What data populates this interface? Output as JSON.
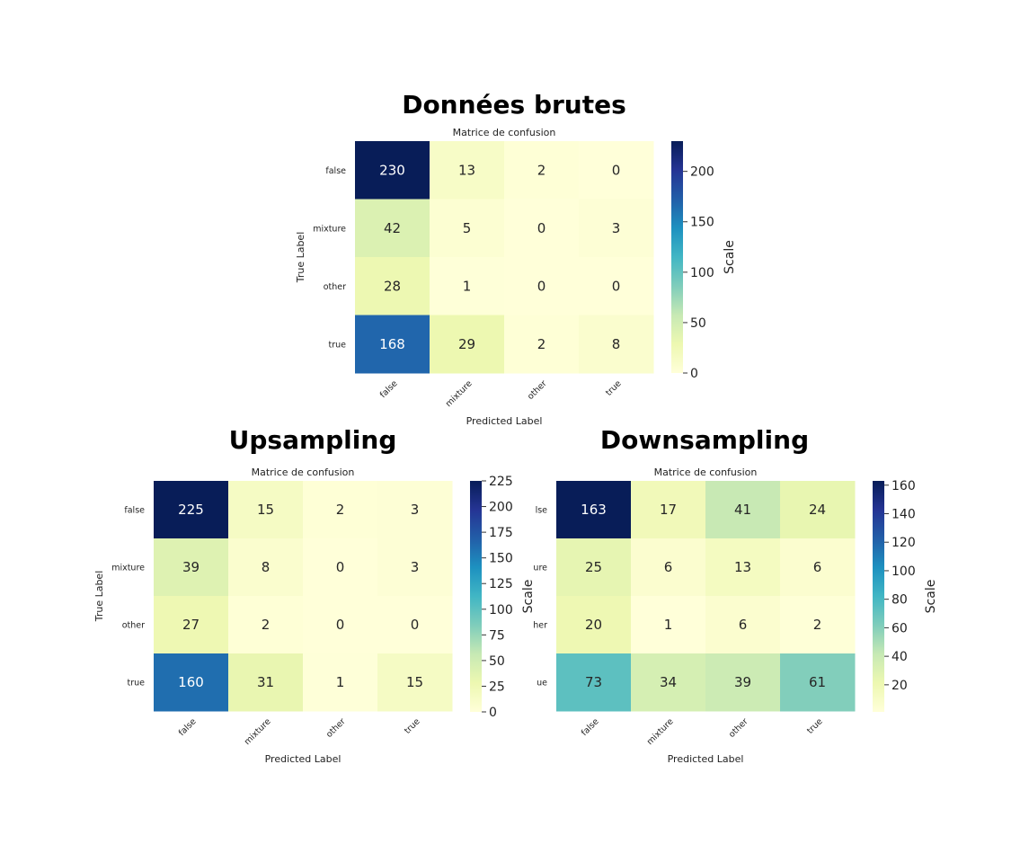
{
  "sections": {
    "raw": "Données brutes",
    "up": "Upsampling",
    "down": "Downsampling"
  },
  "chart_data": [
    {
      "type": "heatmap",
      "id": "raw",
      "title": "Matrice de confusion",
      "xlabel": "Predicted Label",
      "ylabel": "True Label",
      "row_labels": [
        "false",
        "mixture",
        "other",
        "true"
      ],
      "col_labels": [
        "false",
        "mixture",
        "other",
        "true"
      ],
      "matrix": [
        [
          230,
          13,
          2,
          0
        ],
        [
          42,
          5,
          0,
          3
        ],
        [
          28,
          1,
          0,
          0
        ],
        [
          168,
          29,
          2,
          8
        ]
      ],
      "colorbar": {
        "label": "Scale",
        "min": 0,
        "max": 230,
        "ticks": [
          0,
          50,
          100,
          150,
          200
        ]
      },
      "colormap": "YlGnBu"
    },
    {
      "type": "heatmap",
      "id": "up",
      "title": "Matrice de confusion",
      "xlabel": "Predicted Label",
      "ylabel": "True Label",
      "row_labels": [
        "false",
        "mixture",
        "other",
        "true"
      ],
      "col_labels": [
        "false",
        "mixture",
        "other",
        "true"
      ],
      "matrix": [
        [
          225,
          15,
          2,
          3
        ],
        [
          39,
          8,
          0,
          3
        ],
        [
          27,
          2,
          0,
          0
        ],
        [
          160,
          31,
          1,
          15
        ]
      ],
      "colorbar": {
        "label": "Scale",
        "min": 0,
        "max": 225,
        "ticks": [
          0,
          25,
          50,
          75,
          100,
          125,
          150,
          175,
          200,
          225
        ]
      },
      "colormap": "YlGnBu"
    },
    {
      "type": "heatmap",
      "id": "down",
      "title": "Matrice de confusion",
      "xlabel": "Predicted Label",
      "ylabel": "",
      "row_labels": [
        "lse",
        "ure",
        "her",
        "ue"
      ],
      "col_labels": [
        "false",
        "mixture",
        "other",
        "true"
      ],
      "matrix": [
        [
          163,
          17,
          41,
          24
        ],
        [
          25,
          6,
          13,
          6
        ],
        [
          20,
          1,
          6,
          2
        ],
        [
          73,
          34,
          39,
          61
        ]
      ],
      "colorbar": {
        "label": "Scale",
        "min": 1,
        "max": 163,
        "ticks": [
          20,
          40,
          60,
          80,
          100,
          120,
          140,
          160
        ]
      },
      "colormap": "YlGnBu"
    }
  ]
}
